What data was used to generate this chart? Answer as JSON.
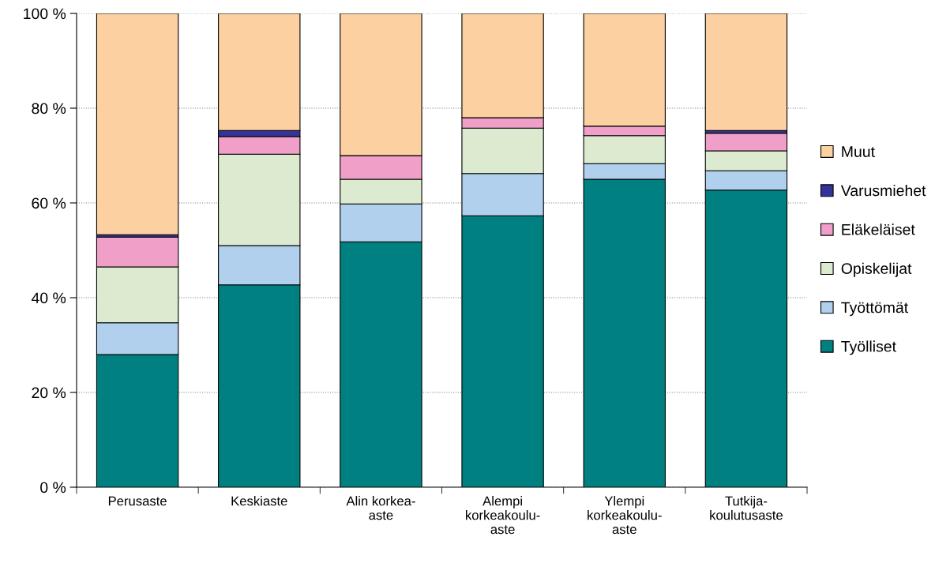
{
  "chart_data": {
    "type": "bar",
    "stacked": true,
    "categories": [
      "Perusaste",
      "Keskiaste",
      "Alin korkea-\naste",
      "Alempi\nkorkeakoulu-\naste",
      "Ylempi\nkorkeakoulu-\naste",
      "Tutkija-\nkoulutusaste"
    ],
    "series": [
      {
        "name": "Työlliset",
        "color": "#008080",
        "values": [
          28.0,
          42.7,
          51.8,
          57.3,
          65.0,
          62.7
        ]
      },
      {
        "name": "Työttömät",
        "color": "#b0d0ee",
        "values": [
          6.7,
          8.3,
          8.0,
          8.9,
          3.3,
          4.1
        ]
      },
      {
        "name": "Opiskelijat",
        "color": "#dcebd0",
        "values": [
          11.8,
          19.3,
          5.2,
          9.6,
          5.9,
          4.2
        ]
      },
      {
        "name": "Eläkeläiset",
        "color": "#f0a0c8",
        "values": [
          6.3,
          3.7,
          5.0,
          2.2,
          2.0,
          3.7
        ]
      },
      {
        "name": "Varusmiehet",
        "color": "#333399",
        "values": [
          0.5,
          1.3,
          0.0,
          0.0,
          0.0,
          0.6
        ]
      },
      {
        "name": "Muut",
        "color": "#fcd0a0",
        "values": [
          46.7,
          24.7,
          30.0,
          22.0,
          23.8,
          24.7
        ]
      }
    ],
    "ylim": [
      0,
      100
    ],
    "yticks": [
      {
        "value": 0,
        "label": "0 %"
      },
      {
        "value": 20,
        "label": "20 %"
      },
      {
        "value": 40,
        "label": "40 %"
      },
      {
        "value": 60,
        "label": "60 %"
      },
      {
        "value": 80,
        "label": "80 %"
      },
      {
        "value": 100,
        "label": "100 %"
      }
    ],
    "grid": "y",
    "legend": "right"
  }
}
